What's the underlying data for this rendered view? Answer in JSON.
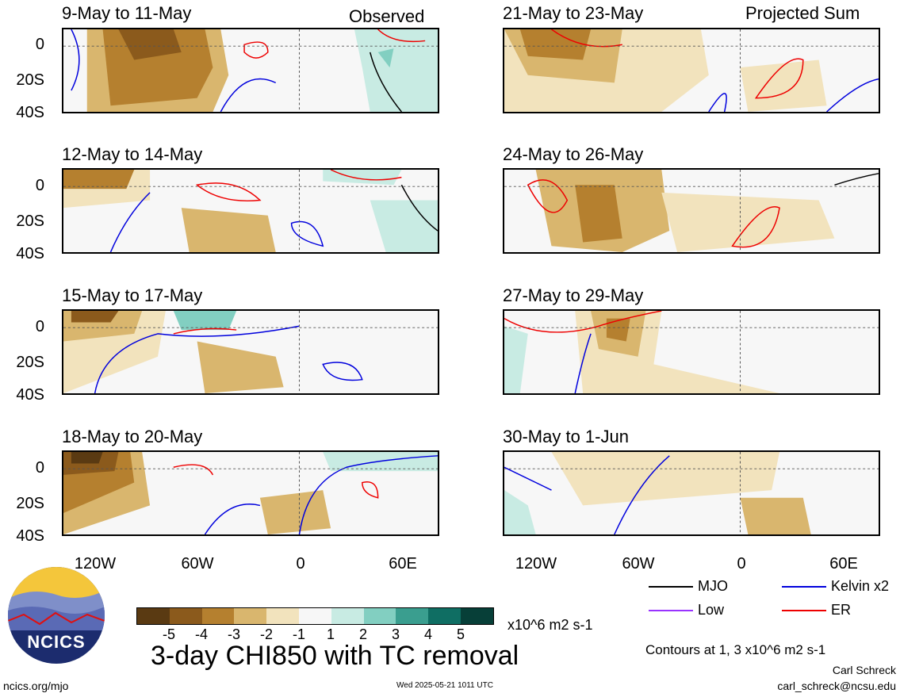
{
  "panels": [
    {
      "title": "9-May to 11-May",
      "tag": "Observed"
    },
    {
      "title": "21-May to 23-May",
      "tag": "Projected Sum"
    },
    {
      "title": "12-May to 14-May",
      "tag": ""
    },
    {
      "title": "24-May to 26-May",
      "tag": ""
    },
    {
      "title": "15-May to 17-May",
      "tag": ""
    },
    {
      "title": "27-May to 29-May",
      "tag": ""
    },
    {
      "title": "18-May to 20-May",
      "tag": ""
    },
    {
      "title": "30-May to 1-Jun",
      "tag": ""
    }
  ],
  "axes": {
    "ylabels": [
      "0",
      "20S",
      "40S"
    ],
    "xlabels": [
      "120W",
      "60W",
      "0",
      "60E"
    ]
  },
  "legend": {
    "mjo": "MJO",
    "kelvin": "Kelvin x2",
    "low": "Low",
    "er": "ER",
    "colors": {
      "mjo": "#000000",
      "kelvin": "#0000dd",
      "low": "#9933ff",
      "er": "#ee0000"
    },
    "contours_note": "Contours at 1, 3 x10^6 m2 s-1"
  },
  "colorbar": {
    "colors": [
      "#5a3a12",
      "#8b5a1c",
      "#b5802f",
      "#d9b66e",
      "#f2e3bd",
      "#f7f7f7",
      "#c8ebe3",
      "#82cfc1",
      "#3a9e8f",
      "#0f6e63",
      "#073f38"
    ],
    "labels": [
      "-5",
      "-4",
      "-3",
      "-2",
      "-1",
      "1",
      "2",
      "3",
      "4",
      "5"
    ],
    "units": "x10^6 m2 s-1"
  },
  "main_title": "3-day CHI850 with TC removal",
  "logo_text": "NCICS",
  "footer": {
    "left": "ncics.org/mjo",
    "center": "Wed 2025-05-21 1011 UTC",
    "author": "Carl Schreck",
    "email": "carl_schreck@ncsu.edu"
  }
}
